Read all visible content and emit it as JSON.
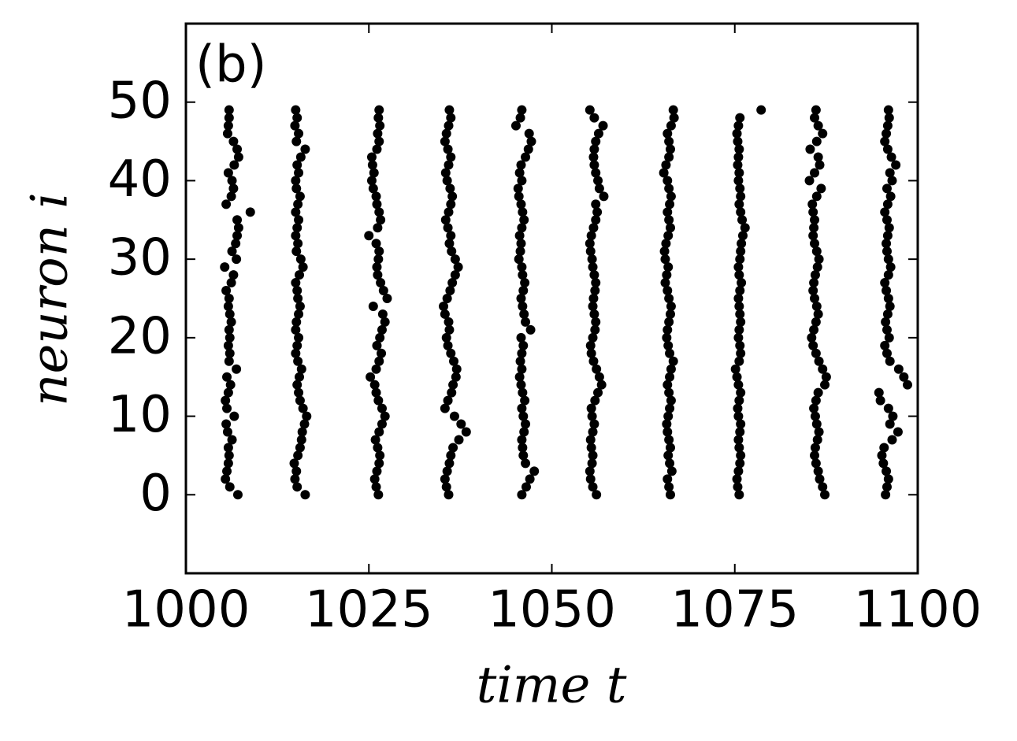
{
  "chart_data": {
    "type": "scatter",
    "panel_label": "(b)",
    "x_label": "time t",
    "y_label": "neuron i",
    "xlim": [
      1000,
      1100
    ],
    "ylim": [
      -10,
      60
    ],
    "xticks": [
      1000,
      1025,
      1050,
      1075,
      1100
    ],
    "yticks": [
      0,
      10,
      20,
      30,
      40,
      50
    ],
    "color": "#000000",
    "x": [
      1007.1,
      1006.0,
      1005.4,
      1005.6,
      1005.8,
      1005.9,
      1005.8,
      1006.3,
      1005.7,
      1005.5,
      1006.6,
      1005.6,
      1005.4,
      1005.8,
      1006.1,
      1005.6,
      1006.9,
      1005.9,
      1006.0,
      1005.8,
      1006.0,
      1005.9,
      1006.2,
      1006.0,
      1005.8,
      1005.9,
      1005.5,
      1006.2,
      1006.5,
      1005.3,
      1006.9,
      1006.3,
      1006.8,
      1007.0,
      1007.2,
      1007.0,
      1008.8,
      1005.5,
      1006.2,
      1006.5,
      1006.3,
      1005.8,
      1006.6,
      1007.2,
      1007.0,
      1006.5,
      1005.7,
      1005.8,
      1005.9,
      1005.9,
      1016.3,
      1015.2,
      1014.9,
      1015.1,
      1014.8,
      1015.3,
      1015.6,
      1015.8,
      1015.9,
      1016.2,
      1016.5,
      1016.0,
      1015.6,
      1015.4,
      1015.2,
      1015.5,
      1015.8,
      1015.3,
      1015.0,
      1015.2,
      1015.4,
      1015.0,
      1015.1,
      1015.4,
      1015.6,
      1015.3,
      1015.2,
      1015.0,
      1015.5,
      1016.0,
      1015.7,
      1015.1,
      1015.3,
      1015.0,
      1015.2,
      1015.4,
      1015.0,
      1015.3,
      1015.6,
      1015.1,
      1015.0,
      1015.4,
      1015.2,
      1015.7,
      1016.3,
      1015.1,
      1015.4,
      1014.9,
      1015.2,
      1015.0,
      1026.3,
      1026.0,
      1025.8,
      1026.1,
      1026.4,
      1026.5,
      1026.2,
      1025.9,
      1026.4,
      1026.8,
      1027.2,
      1026.8,
      1026.3,
      1026.0,
      1025.8,
      1025.2,
      1026.0,
      1026.4,
      1026.7,
      1026.1,
      1026.5,
      1026.8,
      1027.2,
      1026.9,
      1025.6,
      1027.5,
      1027.0,
      1026.6,
      1026.2,
      1026.1,
      1026.3,
      1026.4,
      1026.0,
      1025.0,
      1026.2,
      1026.6,
      1026.4,
      1026.1,
      1026.0,
      1025.6,
      1025.4,
      1025.7,
      1025.5,
      1025.4,
      1026.1,
      1026.4,
      1026.2,
      1026.5,
      1026.3,
      1026.4,
      1035.9,
      1035.6,
      1035.4,
      1035.7,
      1036.0,
      1036.2,
      1036.5,
      1037.3,
      1038.3,
      1037.6,
      1036.7,
      1035.4,
      1035.8,
      1036.3,
      1036.5,
      1036.9,
      1037.0,
      1036.6,
      1036.2,
      1035.8,
      1035.6,
      1036.0,
      1035.9,
      1035.4,
      1035.2,
      1035.7,
      1036.1,
      1036.4,
      1036.8,
      1037.2,
      1036.8,
      1036.3,
      1036.0,
      1036.2,
      1035.8,
      1035.5,
      1035.9,
      1036.2,
      1036.4,
      1036.1,
      1035.7,
      1035.5,
      1035.9,
      1036.2,
      1035.8,
      1035.4,
      1035.6,
      1035.9,
      1036.2,
      1036.0,
      1045.9,
      1046.5,
      1047.0,
      1047.6,
      1046.4,
      1046.1,
      1046.0,
      1045.9,
      1046.2,
      1046.4,
      1046.1,
      1045.9,
      1046.3,
      1046.0,
      1045.8,
      1045.6,
      1045.9,
      1045.7,
      1045.9,
      1046.1,
      1045.8,
      1047.1,
      1046.4,
      1046.2,
      1046.0,
      1045.8,
      1046.1,
      1046.3,
      1046.0,
      1045.9,
      1045.5,
      1045.7,
      1045.8,
      1045.6,
      1045.9,
      1046.2,
      1046.0,
      1045.8,
      1045.5,
      1045.4,
      1045.9,
      1045.6,
      1045.8,
      1046.4,
      1046.8,
      1047.2,
      1046.9,
      1045.1,
      1045.7,
      1045.9,
      1056.1,
      1055.6,
      1055.3,
      1055.2,
      1055.5,
      1055.6,
      1055.4,
      1055.3,
      1055.6,
      1055.8,
      1055.5,
      1055.4,
      1055.9,
      1056.3,
      1056.8,
      1056.5,
      1056.1,
      1055.7,
      1055.4,
      1055.3,
      1055.6,
      1055.9,
      1056.0,
      1055.8,
      1055.6,
      1055.7,
      1055.9,
      1056.0,
      1055.8,
      1055.6,
      1055.5,
      1055.3,
      1055.2,
      1055.4,
      1055.7,
      1056.0,
      1056.2,
      1056.0,
      1057.1,
      1056.5,
      1056.3,
      1056.0,
      1055.8,
      1055.7,
      1055.8,
      1056.0,
      1056.4,
      1057.0,
      1055.8,
      1055.2,
      1066.2,
      1066.0,
      1065.8,
      1066.4,
      1066.1,
      1065.9,
      1066.2,
      1066.0,
      1065.8,
      1065.7,
      1065.9,
      1066.1,
      1066.3,
      1066.0,
      1065.8,
      1066.1,
      1066.3,
      1066.6,
      1066.1,
      1065.9,
      1065.7,
      1065.8,
      1066.0,
      1066.2,
      1066.3,
      1066.0,
      1065.8,
      1065.5,
      1065.7,
      1065.9,
      1065.5,
      1065.4,
      1065.6,
      1065.9,
      1066.2,
      1066.0,
      1065.8,
      1066.1,
      1066.3,
      1066.0,
      1065.8,
      1065.3,
      1065.6,
      1066.0,
      1066.2,
      1066.0,
      1065.8,
      1066.3,
      1066.7,
      1066.6,
      1075.6,
      1075.4,
      1075.3,
      1075.5,
      1075.7,
      1075.8,
      1075.6,
      1075.5,
      1075.7,
      1075.8,
      1075.5,
      1075.4,
      1075.6,
      1075.8,
      1075.5,
      1075.3,
      1075.1,
      1075.6,
      1075.8,
      1075.7,
      1075.5,
      1075.6,
      1075.8,
      1075.7,
      1075.6,
      1075.5,
      1075.7,
      1075.9,
      1075.6,
      1075.5,
      1075.7,
      1075.8,
      1075.9,
      1076.1,
      1076.4,
      1076.0,
      1075.8,
      1075.6,
      1075.8,
      1075.7,
      1075.5,
      1075.6,
      1075.4,
      1075.5,
      1075.6,
      1075.4,
      1075.3,
      1075.5,
      1075.7,
      1078.6,
      1087.3,
      1087.0,
      1086.6,
      1086.4,
      1086.1,
      1085.9,
      1086.0,
      1086.3,
      1086.5,
      1086.2,
      1086.0,
      1085.8,
      1086.1,
      1086.4,
      1087.3,
      1087.5,
      1087.0,
      1086.5,
      1086.1,
      1085.7,
      1085.5,
      1085.8,
      1086.1,
      1086.4,
      1086.2,
      1085.9,
      1085.7,
      1085.8,
      1086.0,
      1086.3,
      1086.5,
      1086.2,
      1085.9,
      1085.7,
      1085.8,
      1085.9,
      1085.7,
      1085.6,
      1086.2,
      1086.8,
      1085.2,
      1085.9,
      1086.6,
      1086.4,
      1085.3,
      1086.2,
      1087.0,
      1086.4,
      1085.9,
      1086.1,
      1095.6,
      1095.8,
      1096.0,
      1095.7,
      1095.3,
      1095.1,
      1095.4,
      1096.5,
      1097.3,
      1096.2,
      1096.6,
      1096.0,
      1094.9,
      1094.7,
      1098.6,
      1098.1,
      1097.4,
      1096.2,
      1095.8,
      1095.5,
      1096.1,
      1095.8,
      1095.6,
      1095.9,
      1096.2,
      1096.0,
      1095.7,
      1095.5,
      1096.0,
      1096.3,
      1096.0,
      1095.8,
      1095.7,
      1095.9,
      1096.1,
      1095.8,
      1095.5,
      1095.9,
      1096.3,
      1095.8,
      1096.5,
      1096.2,
      1097.0,
      1096.4,
      1095.9,
      1095.5,
      1095.7,
      1095.9,
      1096.1,
      1096.0
    ],
    "y": [
      0,
      1,
      2,
      3,
      4,
      5,
      6,
      7,
      8,
      9,
      10,
      11,
      12,
      13,
      14,
      15,
      16,
      17,
      18,
      19,
      20,
      21,
      22,
      23,
      24,
      25,
      26,
      27,
      28,
      29,
      30,
      31,
      32,
      33,
      34,
      35,
      36,
      37,
      38,
      39,
      40,
      41,
      42,
      43,
      44,
      45,
      46,
      47,
      48,
      49,
      0,
      1,
      2,
      3,
      4,
      5,
      6,
      7,
      8,
      9,
      10,
      11,
      12,
      13,
      14,
      15,
      16,
      17,
      18,
      19,
      20,
      21,
      22,
      23,
      24,
      25,
      26,
      27,
      28,
      29,
      30,
      31,
      32,
      33,
      34,
      35,
      36,
      37,
      38,
      39,
      40,
      41,
      42,
      43,
      44,
      45,
      46,
      47,
      48,
      49,
      0,
      1,
      2,
      3,
      4,
      5,
      6,
      7,
      8,
      9,
      10,
      11,
      12,
      13,
      14,
      15,
      16,
      17,
      18,
      19,
      20,
      21,
      22,
      23,
      24,
      25,
      26,
      27,
      28,
      29,
      30,
      31,
      32,
      33,
      34,
      35,
      36,
      37,
      38,
      39,
      40,
      41,
      42,
      43,
      44,
      45,
      46,
      47,
      48,
      49,
      0,
      1,
      2,
      3,
      4,
      5,
      6,
      7,
      8,
      9,
      10,
      11,
      12,
      13,
      14,
      15,
      16,
      17,
      18,
      19,
      20,
      21,
      22,
      23,
      24,
      25,
      26,
      27,
      28,
      29,
      30,
      31,
      32,
      33,
      34,
      35,
      36,
      37,
      38,
      39,
      40,
      41,
      42,
      43,
      44,
      45,
      46,
      47,
      48,
      49,
      0,
      1,
      2,
      3,
      4,
      5,
      6,
      7,
      8,
      9,
      10,
      11,
      12,
      13,
      14,
      15,
      16,
      17,
      18,
      19,
      20,
      21,
      22,
      23,
      24,
      25,
      26,
      27,
      28,
      29,
      30,
      31,
      32,
      33,
      34,
      35,
      36,
      37,
      38,
      39,
      40,
      41,
      42,
      43,
      44,
      45,
      46,
      47,
      48,
      49,
      0,
      1,
      2,
      3,
      4,
      5,
      6,
      7,
      8,
      9,
      10,
      11,
      12,
      13,
      14,
      15,
      16,
      17,
      18,
      19,
      20,
      21,
      22,
      23,
      24,
      25,
      26,
      27,
      28,
      29,
      30,
      31,
      32,
      33,
      34,
      35,
      36,
      37,
      38,
      39,
      40,
      41,
      42,
      43,
      44,
      45,
      46,
      47,
      48,
      49,
      0,
      1,
      2,
      3,
      4,
      5,
      6,
      7,
      8,
      9,
      10,
      11,
      12,
      13,
      14,
      15,
      16,
      17,
      18,
      19,
      20,
      21,
      22,
      23,
      24,
      25,
      26,
      27,
      28,
      29,
      30,
      31,
      32,
      33,
      34,
      35,
      36,
      37,
      38,
      39,
      40,
      41,
      42,
      43,
      44,
      45,
      46,
      47,
      48,
      49,
      0,
      1,
      2,
      3,
      4,
      5,
      6,
      7,
      8,
      9,
      10,
      11,
      12,
      13,
      14,
      15,
      16,
      17,
      18,
      19,
      20,
      21,
      22,
      23,
      24,
      25,
      26,
      27,
      28,
      29,
      30,
      31,
      32,
      33,
      34,
      35,
      36,
      37,
      38,
      39,
      40,
      41,
      42,
      43,
      44,
      45,
      46,
      47,
      48,
      49,
      0,
      1,
      2,
      3,
      4,
      5,
      6,
      7,
      8,
      9,
      10,
      11,
      12,
      13,
      14,
      15,
      16,
      17,
      18,
      19,
      20,
      21,
      22,
      23,
      24,
      25,
      26,
      27,
      28,
      29,
      30,
      31,
      32,
      33,
      34,
      35,
      36,
      37,
      38,
      39,
      40,
      41,
      42,
      43,
      44,
      45,
      46,
      47,
      48,
      49,
      0,
      1,
      2,
      3,
      4,
      5,
      6,
      7,
      8,
      9,
      10,
      11,
      12,
      13,
      14,
      15,
      16,
      17,
      18,
      19,
      20,
      21,
      22,
      23,
      24,
      25,
      26,
      27,
      28,
      29,
      30,
      31,
      32,
      33,
      34,
      35,
      36,
      37,
      38,
      39,
      40,
      41,
      42,
      43,
      44,
      45,
      46,
      47,
      48,
      49
    ]
  }
}
